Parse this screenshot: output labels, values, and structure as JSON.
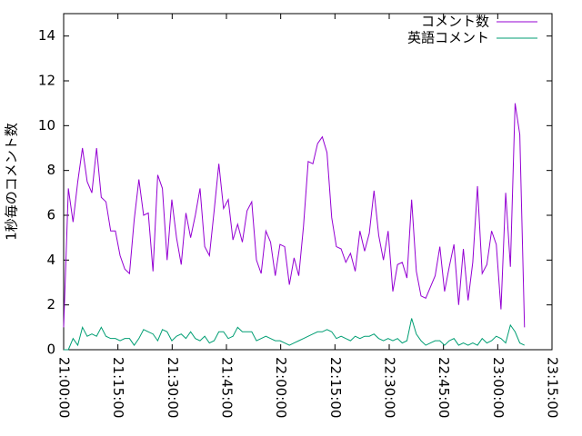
{
  "chart_data": {
    "type": "line",
    "ylabel": "1秒毎のコメント数",
    "x": [
      "21:00:00",
      "21:01:18",
      "21:02:36",
      "21:03:54",
      "21:05:12",
      "21:06:30",
      "21:07:48",
      "21:09:06",
      "21:10:24",
      "21:11:42",
      "21:13:00",
      "21:14:18",
      "21:15:36",
      "21:16:54",
      "21:18:12",
      "21:19:30",
      "21:20:48",
      "21:22:06",
      "21:23:24",
      "21:24:42",
      "21:26:00",
      "21:27:18",
      "21:28:36",
      "21:29:54",
      "21:31:12",
      "21:32:30",
      "21:33:48",
      "21:35:06",
      "21:36:24",
      "21:37:42",
      "21:39:00",
      "21:40:18",
      "21:41:36",
      "21:42:54",
      "21:44:12",
      "21:45:30",
      "21:46:48",
      "21:48:06",
      "21:49:24",
      "21:50:42",
      "21:52:00",
      "21:53:18",
      "21:54:36",
      "21:55:54",
      "21:57:12",
      "21:58:30",
      "21:59:48",
      "22:01:06",
      "22:02:24",
      "22:03:42",
      "22:05:00",
      "22:06:18",
      "22:07:36",
      "22:08:54",
      "22:10:12",
      "22:11:30",
      "22:12:48",
      "22:14:06",
      "22:15:24",
      "22:16:42",
      "22:18:00",
      "22:19:18",
      "22:20:36",
      "22:21:54",
      "22:23:12",
      "22:24:30",
      "22:25:48",
      "22:27:06",
      "22:28:24",
      "22:29:42",
      "22:31:00",
      "22:32:18",
      "22:33:36",
      "22:34:54",
      "22:36:12",
      "22:37:30",
      "22:38:48",
      "22:40:06",
      "22:41:24",
      "22:42:42",
      "22:44:00",
      "22:45:18",
      "22:46:36",
      "22:47:54",
      "22:49:12",
      "22:50:30",
      "22:51:48",
      "22:53:06",
      "22:54:24",
      "22:55:42",
      "22:57:00",
      "22:58:18",
      "22:59:36",
      "23:00:54",
      "23:02:12",
      "23:03:30",
      "23:04:48",
      "23:06:06",
      "23:07:24"
    ],
    "series": [
      {
        "name": "コメント数",
        "color": "#9400d3",
        "values": [
          1.0,
          7.2,
          5.7,
          7.5,
          9.0,
          7.5,
          7.0,
          9.0,
          6.8,
          6.6,
          5.3,
          5.3,
          4.2,
          3.6,
          3.4,
          5.8,
          7.6,
          6.0,
          6.1,
          3.5,
          7.8,
          7.2,
          4.0,
          6.7,
          5.0,
          3.8,
          6.1,
          5.0,
          6.0,
          7.2,
          4.6,
          4.2,
          6.2,
          8.3,
          6.3,
          6.7,
          4.9,
          5.6,
          4.8,
          6.2,
          6.6,
          4.0,
          3.4,
          5.3,
          4.8,
          3.3,
          4.7,
          4.6,
          2.9,
          4.1,
          3.3,
          5.5,
          8.4,
          8.3,
          9.2,
          9.5,
          8.8,
          5.9,
          4.6,
          4.5,
          3.9,
          4.3,
          3.5,
          5.3,
          4.4,
          5.2,
          7.1,
          5.1,
          4.0,
          5.3,
          2.6,
          3.8,
          3.9,
          3.2,
          6.7,
          3.5,
          2.4,
          2.3,
          2.8,
          3.3,
          4.6,
          2.6,
          3.7,
          4.7,
          2.0,
          4.5,
          2.2,
          3.9,
          7.3,
          3.4,
          3.8,
          5.3,
          4.7,
          1.8,
          7.0,
          3.7,
          11.0,
          9.6,
          1.0
        ]
      },
      {
        "name": "英語コメント",
        "color": "#009e73",
        "values": [
          0.0,
          0.0,
          0.5,
          0.2,
          1.0,
          0.6,
          0.7,
          0.6,
          1.0,
          0.6,
          0.5,
          0.5,
          0.4,
          0.5,
          0.5,
          0.2,
          0.5,
          0.9,
          0.8,
          0.7,
          0.4,
          0.9,
          0.8,
          0.4,
          0.6,
          0.7,
          0.5,
          0.8,
          0.5,
          0.4,
          0.6,
          0.3,
          0.4,
          0.8,
          0.8,
          0.5,
          0.6,
          1.0,
          0.8,
          0.8,
          0.8,
          0.4,
          0.5,
          0.6,
          0.5,
          0.4,
          0.4,
          0.3,
          0.2,
          0.3,
          0.4,
          0.5,
          0.6,
          0.7,
          0.8,
          0.8,
          0.9,
          0.8,
          0.5,
          0.6,
          0.5,
          0.4,
          0.6,
          0.5,
          0.6,
          0.6,
          0.7,
          0.5,
          0.4,
          0.5,
          0.4,
          0.5,
          0.3,
          0.4,
          1.4,
          0.7,
          0.4,
          0.2,
          0.3,
          0.4,
          0.4,
          0.2,
          0.4,
          0.5,
          0.2,
          0.3,
          0.2,
          0.3,
          0.2,
          0.5,
          0.3,
          0.4,
          0.6,
          0.5,
          0.3,
          1.1,
          0.8,
          0.3,
          0.2
        ]
      }
    ],
    "xlim": [
      "21:00:00",
      "23:15:00"
    ],
    "xticks": [
      "21:00:00",
      "21:15:00",
      "21:30:00",
      "21:45:00",
      "22:00:00",
      "22:15:00",
      "22:30:00",
      "22:45:00",
      "23:00:00",
      "23:15:00"
    ],
    "ylim": [
      0,
      15
    ],
    "yticks": [
      0,
      2,
      4,
      6,
      8,
      10,
      12,
      14
    ],
    "grid": false,
    "legend": "top-right"
  }
}
